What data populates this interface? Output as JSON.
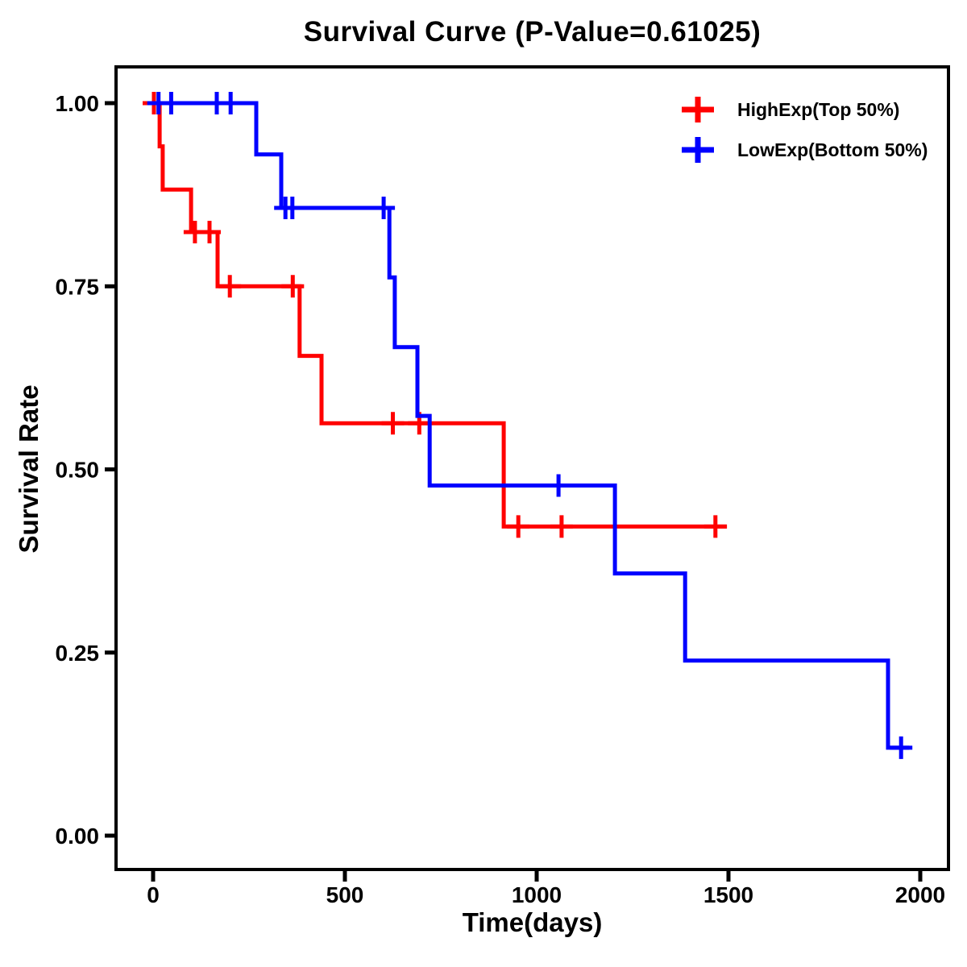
{
  "chart_data": {
    "type": "line",
    "subtype": "kaplan-meier-step",
    "title": "Survival Curve (P-Value=0.61025)",
    "p_value": 0.61025,
    "xlabel": "Time(days)",
    "ylabel": "Survival Rate",
    "xlim": [
      0,
      2000
    ],
    "ylim": [
      0,
      1
    ],
    "xticks": {
      "values": [
        0,
        500,
        1000,
        1500,
        2000
      ],
      "labels": [
        "0",
        "500",
        "1000",
        "1500",
        "2000"
      ]
    },
    "yticks": {
      "values": [
        0,
        0.25,
        0.5,
        0.75,
        1
      ],
      "labels": [
        "0.00",
        "0.25",
        "0.50",
        "0.75",
        "1.00"
      ]
    },
    "grid": false,
    "legend_position": "top-right-inside",
    "frame_color": "#000000",
    "background_color": "#FFFFFF",
    "series": [
      {
        "name": "HighExp(Top 50%)",
        "color": "#FF0000",
        "steps": [
          [
            0,
            1
          ],
          [
            17,
            0.941
          ],
          [
            25,
            0.882
          ],
          [
            99,
            0.824
          ],
          [
            168,
            0.75
          ],
          [
            382,
            0.655
          ],
          [
            439,
            0.563
          ],
          [
            914,
            0.422
          ],
          [
            1496,
            0.422
          ]
        ],
        "censors": [
          [
            2,
            1
          ],
          [
            109,
            0.824
          ],
          [
            147,
            0.824
          ],
          [
            200,
            0.75
          ],
          [
            364,
            0.75
          ],
          [
            625,
            0.563
          ],
          [
            694,
            0.563
          ],
          [
            952,
            0.422
          ],
          [
            1065,
            0.422
          ],
          [
            1466,
            0.422
          ]
        ]
      },
      {
        "name": "LowExp(Bottom 50%)",
        "color": "#0000FF",
        "steps": [
          [
            0,
            1
          ],
          [
            269,
            0.93
          ],
          [
            334,
            0.857
          ],
          [
            616,
            0.762
          ],
          [
            630,
            0.667
          ],
          [
            689,
            0.573
          ],
          [
            721,
            0.478
          ],
          [
            1204,
            0.358
          ],
          [
            1387,
            0.239
          ],
          [
            1916,
            0.12
          ],
          [
            1971,
            0.12
          ]
        ],
        "censors": [
          [
            14,
            1
          ],
          [
            47,
            1
          ],
          [
            166,
            1
          ],
          [
            202,
            1
          ],
          [
            345,
            0.857
          ],
          [
            363,
            0.857
          ],
          [
            601,
            0.857
          ],
          [
            1057,
            0.478
          ],
          [
            1950,
            0.12
          ]
        ]
      }
    ]
  }
}
